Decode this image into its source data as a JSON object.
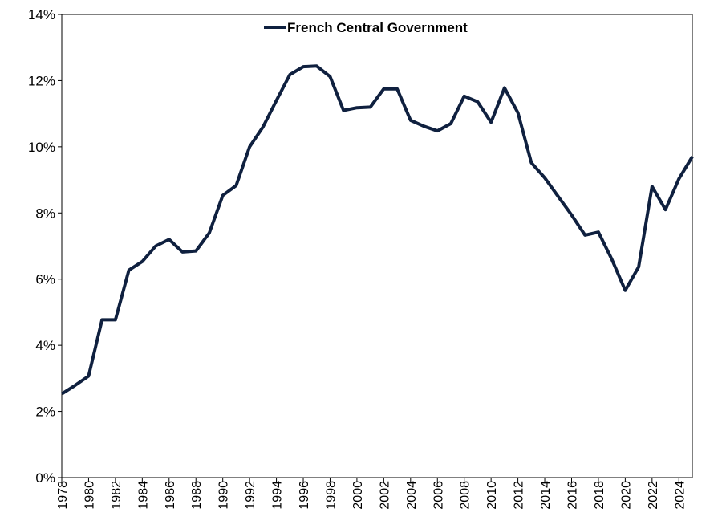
{
  "chart_data": {
    "type": "line",
    "title": "",
    "xlabel": "",
    "ylabel": "",
    "ylim": [
      0,
      14
    ],
    "xlim": [
      1978,
      2025
    ],
    "grid": false,
    "legend_position": "top-center",
    "y_ticks": [
      0,
      2,
      4,
      6,
      8,
      10,
      12,
      14
    ],
    "y_tick_labels": [
      "0%",
      "2%",
      "4%",
      "6%",
      "8%",
      "10%",
      "12%",
      "14%"
    ],
    "x_ticks": [
      1978,
      1980,
      1982,
      1984,
      1986,
      1988,
      1990,
      1992,
      1994,
      1996,
      1998,
      2000,
      2002,
      2004,
      2006,
      2008,
      2010,
      2012,
      2014,
      2016,
      2018,
      2020,
      2022,
      2024
    ],
    "x_tick_labels": [
      "1978",
      "1980",
      "1982",
      "1984",
      "1986",
      "1988",
      "1990",
      "1992",
      "1994",
      "1996",
      "1998",
      "2000",
      "2002",
      "2004",
      "2006",
      "2008",
      "2010",
      "2012",
      "2014",
      "2016",
      "2018",
      "2020",
      "2022",
      "2024"
    ],
    "series": [
      {
        "name": "French Central Government",
        "color": "#0f203f",
        "x": [
          1978,
          1979,
          1980,
          1981,
          1982,
          1983,
          1984,
          1985,
          1986,
          1987,
          1988,
          1989,
          1990,
          1991,
          1992,
          1993,
          1994,
          1995,
          1996,
          1997,
          1998,
          1999,
          2000,
          2001,
          2002,
          2003,
          2004,
          2005,
          2006,
          2007,
          2008,
          2009,
          2010,
          2011,
          2012,
          2013,
          2014,
          2015,
          2016,
          2017,
          2018,
          2019,
          2020,
          2021,
          2022,
          2023,
          2024,
          2025
        ],
        "values": [
          2.53,
          2.79,
          3.07,
          4.77,
          4.77,
          6.27,
          6.53,
          7.0,
          7.2,
          6.82,
          6.85,
          7.4,
          8.53,
          8.83,
          10.0,
          10.6,
          11.4,
          12.18,
          12.42,
          12.44,
          12.12,
          11.1,
          11.18,
          11.2,
          11.75,
          11.75,
          10.8,
          10.62,
          10.48,
          10.7,
          11.53,
          11.36,
          10.74,
          11.78,
          11.03,
          9.52,
          9.06,
          8.5,
          7.94,
          7.33,
          7.42,
          6.6,
          5.66,
          6.37,
          8.8,
          8.1,
          9.03,
          9.7
        ]
      }
    ]
  }
}
